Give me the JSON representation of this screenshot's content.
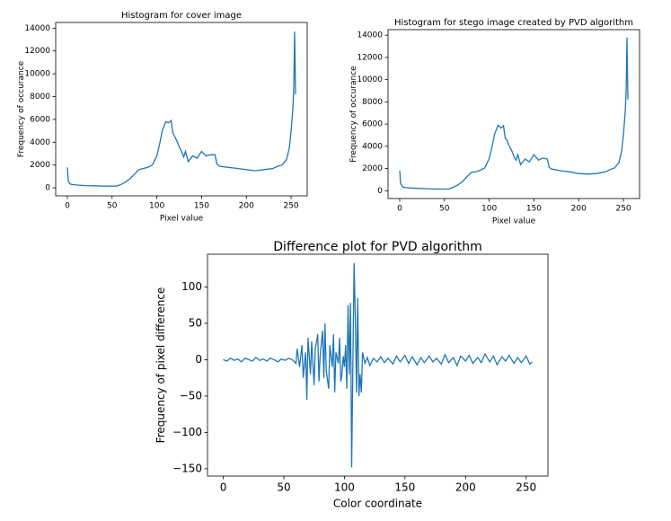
{
  "chart_data": [
    {
      "type": "line",
      "title": "Histogram for cover image",
      "xlabel": "Pixel value",
      "ylabel": "Frequency of occurance",
      "color": "#1f77b4",
      "x": [
        0,
        1,
        3,
        5,
        10,
        20,
        30,
        40,
        50,
        55,
        60,
        65,
        70,
        75,
        80,
        85,
        90,
        95,
        100,
        103,
        106,
        110,
        113,
        116,
        118,
        120,
        123,
        125,
        128,
        130,
        132,
        135,
        140,
        145,
        150,
        155,
        160,
        165,
        167,
        170,
        180,
        190,
        200,
        210,
        220,
        230,
        235,
        240,
        245,
        248,
        250,
        252,
        253,
        254,
        255
      ],
      "values": [
        1800,
        600,
        350,
        300,
        250,
        200,
        180,
        150,
        150,
        150,
        300,
        500,
        800,
        1200,
        1600,
        1700,
        1800,
        2000,
        2800,
        3800,
        5000,
        5800,
        5700,
        5900,
        4800,
        4500,
        4000,
        3600,
        3100,
        2700,
        3200,
        2300,
        2800,
        2600,
        3200,
        2800,
        2900,
        2900,
        2100,
        1900,
        1800,
        1700,
        1600,
        1500,
        1600,
        1700,
        1900,
        2000,
        2500,
        3500,
        5000,
        7000,
        9000,
        13700,
        8200
      ],
      "xlim": [
        -13,
        268
      ],
      "ylim": [
        -700,
        14500
      ],
      "xticks": [
        0,
        50,
        100,
        150,
        200,
        250
      ],
      "yticks": [
        0,
        2000,
        4000,
        6000,
        8000,
        10000,
        12000,
        14000
      ]
    },
    {
      "type": "line",
      "title": "Histogram for stego image created by PVD algorithm",
      "xlabel": "Pixel value",
      "ylabel": "Frequency of occurance",
      "color": "#1f77b4",
      "x": [
        0,
        1,
        3,
        5,
        10,
        20,
        30,
        40,
        50,
        55,
        60,
        65,
        70,
        75,
        80,
        85,
        90,
        95,
        100,
        103,
        106,
        110,
        113,
        116,
        118,
        120,
        123,
        125,
        128,
        130,
        132,
        135,
        140,
        145,
        150,
        155,
        160,
        165,
        167,
        170,
        180,
        190,
        200,
        210,
        220,
        230,
        235,
        240,
        245,
        248,
        250,
        252,
        253,
        254,
        255
      ],
      "values": [
        1800,
        650,
        380,
        300,
        260,
        210,
        180,
        160,
        150,
        160,
        320,
        520,
        820,
        1250,
        1650,
        1700,
        1850,
        2050,
        2900,
        3900,
        5100,
        5900,
        5650,
        5850,
        4700,
        4550,
        3900,
        3650,
        3000,
        2750,
        3250,
        2350,
        2850,
        2600,
        3250,
        2750,
        2950,
        2850,
        2100,
        1950,
        1800,
        1700,
        1550,
        1500,
        1550,
        1700,
        1900,
        2050,
        2550,
        3600,
        5100,
        7200,
        9100,
        13800,
        8200
      ],
      "xlim": [
        -13,
        268
      ],
      "ylim": [
        -700,
        14500
      ],
      "xticks": [
        0,
        50,
        100,
        150,
        200,
        250
      ],
      "yticks": [
        0,
        2000,
        4000,
        6000,
        8000,
        10000,
        12000,
        14000
      ]
    },
    {
      "type": "line",
      "title": "Difference plot for PVD algorithm",
      "xlabel": "Color coordinate",
      "ylabel": "Frequency of pixel difference",
      "color": "#1f77b4",
      "x": [
        0,
        3,
        6,
        9,
        12,
        15,
        18,
        21,
        24,
        27,
        30,
        33,
        36,
        39,
        42,
        45,
        48,
        51,
        54,
        57,
        60,
        61,
        63,
        65,
        66,
        68,
        69,
        70,
        72,
        73,
        75,
        76,
        78,
        79,
        80,
        82,
        83,
        84,
        85,
        87,
        88,
        90,
        91,
        92,
        93,
        95,
        96,
        97,
        98,
        99,
        100,
        101,
        102,
        103,
        104,
        105,
        106,
        107,
        108,
        109,
        110,
        111,
        112,
        113,
        114,
        115,
        117,
        119,
        121,
        124,
        127,
        130,
        133,
        136,
        140,
        143,
        146,
        150,
        153,
        156,
        160,
        163,
        166,
        170,
        173,
        176,
        180,
        183,
        186,
        190,
        193,
        196,
        200,
        203,
        206,
        210,
        213,
        216,
        220,
        223,
        226,
        230,
        233,
        236,
        240,
        243,
        246,
        250,
        253,
        255
      ],
      "values": [
        0,
        -2,
        2,
        -1,
        1,
        -3,
        2,
        0,
        -2,
        3,
        -1,
        1,
        -2,
        2,
        0,
        -3,
        1,
        -1,
        2,
        0,
        -5,
        15,
        -10,
        20,
        -25,
        10,
        -55,
        30,
        -20,
        25,
        -35,
        15,
        35,
        -30,
        5,
        40,
        -25,
        50,
        -15,
        -40,
        20,
        -10,
        35,
        -45,
        10,
        -5,
        30,
        -30,
        -20,
        5,
        -10,
        20,
        -40,
        75,
        -20,
        78,
        -148,
        0,
        133,
        60,
        -45,
        85,
        -50,
        -20,
        -45,
        10,
        -5,
        3,
        -8,
        2,
        -3,
        4,
        -4,
        2,
        -6,
        5,
        -3,
        6,
        -5,
        4,
        -7,
        3,
        -4,
        5,
        -3,
        2,
        -6,
        7,
        -4,
        3,
        -8,
        5,
        -2,
        6,
        -5,
        3,
        -4,
        8,
        -3,
        5,
        -7,
        4,
        -2,
        6,
        -5,
        3,
        -4,
        5,
        -6,
        -3
      ],
      "xlim": [
        -13,
        268
      ],
      "ylim": [
        -160,
        145
      ],
      "xticks": [
        0,
        50,
        100,
        150,
        200,
        250
      ],
      "yticks": [
        {
          "value": -150,
          "label": "−150"
        },
        {
          "value": -100,
          "label": "−100"
        },
        {
          "value": -50,
          "label": "−50"
        },
        0,
        50,
        100
      ]
    }
  ]
}
